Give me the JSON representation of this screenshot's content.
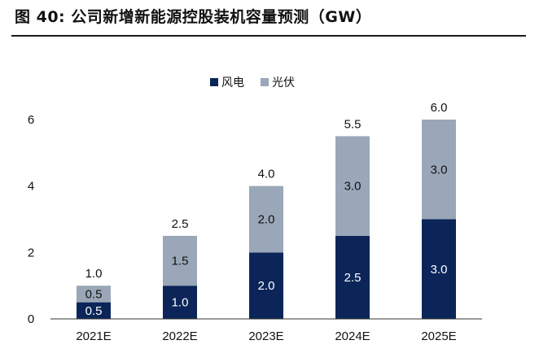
{
  "header": {
    "title": "图 40: 公司新增新能源控股装机容量预测（GW）"
  },
  "chart_data": {
    "type": "bar",
    "stacked": true,
    "categories": [
      "2021E",
      "2022E",
      "2023E",
      "2024E",
      "2025E"
    ],
    "series": [
      {
        "name": "风电",
        "values": [
          0.5,
          1.0,
          2.0,
          2.5,
          3.0
        ],
        "color": "#0b2559",
        "label_color": "#ffffff"
      },
      {
        "name": "光伏",
        "values": [
          0.5,
          1.5,
          2.0,
          3.0,
          3.0
        ],
        "color": "#9aa7b8",
        "label_color": "#111111"
      }
    ],
    "totals": [
      1.0,
      2.5,
      4.0,
      5.5,
      6.0
    ],
    "yticks": [
      0,
      2,
      4,
      6
    ],
    "ylim": [
      0,
      6
    ],
    "grid": false,
    "legend_position": "top-center"
  }
}
